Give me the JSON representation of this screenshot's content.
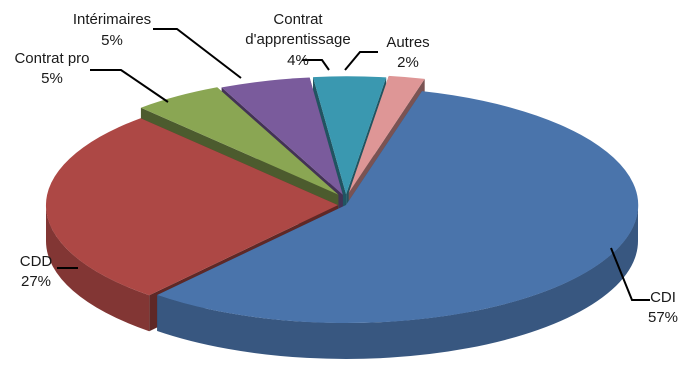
{
  "chart_data": {
    "type": "pie",
    "style": "exploded-3d",
    "slices": [
      {
        "label": "CDI",
        "value": 57,
        "value_label": "57%",
        "color": "#4a74ab"
      },
      {
        "label": "CDD",
        "value": 27,
        "value_label": "27%",
        "color": "#ad4845"
      },
      {
        "label": "Contrat pro",
        "value": 5,
        "value_label": "5%",
        "color": "#8aa653"
      },
      {
        "label": "Intérimaires",
        "value": 5,
        "value_label": "5%",
        "color": "#7a5b9c"
      },
      {
        "label": "Contrat d'apprentissage",
        "label_lines": [
          "Contrat",
          "d'apprentissage"
        ],
        "value": 4,
        "value_label": "4%",
        "color": "#3a98b0"
      },
      {
        "label": "Autres",
        "value": 2,
        "value_label": "2%",
        "color": "#de9696"
      }
    ]
  }
}
